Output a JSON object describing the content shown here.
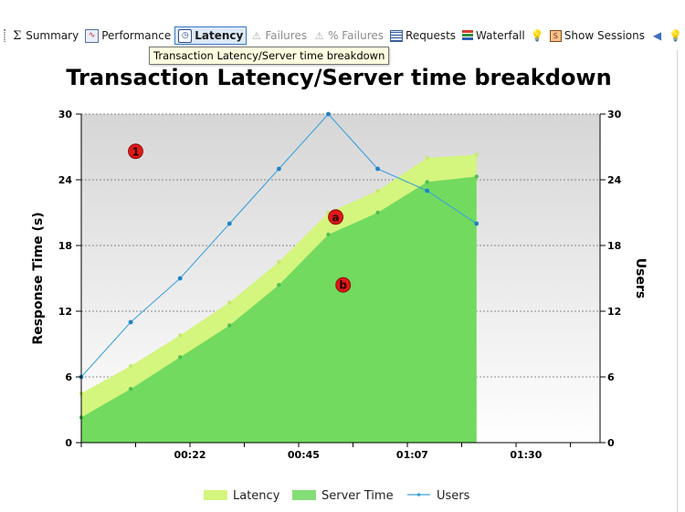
{
  "toolbar": {
    "items": [
      {
        "label": "Summary",
        "icon": "sigma-icon",
        "state": "normal"
      },
      {
        "label": "Performance",
        "icon": "performance-chart-icon",
        "state": "normal"
      },
      {
        "label": "Latency",
        "icon": "latency-clock-icon",
        "state": "active"
      },
      {
        "label": "Failures",
        "icon": "warning-triangle-icon",
        "state": "disabled"
      },
      {
        "label": "% Failures",
        "icon": "percent-failures-icon",
        "state": "disabled"
      },
      {
        "label": "Requests",
        "icon": "requests-table-icon",
        "state": "normal"
      },
      {
        "label": "Waterfall",
        "icon": "waterfall-icon",
        "state": "normal"
      },
      {
        "label": "",
        "icon": "lightbulb-icon",
        "state": "normal"
      },
      {
        "label": "Show Sessions",
        "icon": "sessions-icon",
        "state": "normal"
      },
      {
        "label": "",
        "icon": "back-arrow-icon",
        "state": "normal"
      },
      {
        "label": "",
        "icon": "lightbulb-icon",
        "state": "normal"
      }
    ]
  },
  "tooltip": {
    "text": "Transaction Latency/Server time breakdown"
  },
  "colors": {
    "latency": "#d4f57e",
    "server_time": "#6dd85e",
    "users": "#3ea2dc",
    "plot_bg_top": "#d6d6d6",
    "marker_red": "#e01818"
  },
  "chart_data": {
    "type": "area",
    "title": "Transaction Latency/Server time breakdown",
    "xlabel": "",
    "ylabel": "Response Time (s)",
    "y2label": "Users",
    "x_tick_labels": [
      "00:22",
      "00:45",
      "01:07",
      "01:30"
    ],
    "x_tick_values": [
      22,
      45,
      67,
      90
    ],
    "xlim": [
      0,
      105
    ],
    "ylim": [
      0,
      30
    ],
    "y2lim": [
      0,
      30
    ],
    "y_ticks": [
      0,
      6,
      12,
      18,
      24,
      30
    ],
    "y2_ticks": [
      0,
      6,
      12,
      18,
      24,
      30
    ],
    "grid": true,
    "legend": "bottom",
    "x": [
      0,
      10,
      20,
      30,
      40,
      50,
      60,
      70,
      80
    ],
    "series": [
      {
        "name": "Latency",
        "type": "area",
        "axis": "left",
        "values": [
          4.5,
          7,
          9.8,
          12.8,
          16.5,
          21,
          23,
          26,
          26.3
        ]
      },
      {
        "name": "Server Time",
        "type": "area",
        "axis": "left",
        "values": [
          2.3,
          4.9,
          7.8,
          10.7,
          14.4,
          19,
          21,
          23.8,
          24.3
        ]
      },
      {
        "name": "Users",
        "type": "line",
        "axis": "right",
        "values": [
          6,
          11,
          15,
          20,
          25,
          30,
          25,
          23,
          20
        ]
      }
    ],
    "annotations": [
      {
        "label": "1",
        "x": 11,
        "y": 26.6
      },
      {
        "label": "a",
        "x": 51.5,
        "y": 20.6
      },
      {
        "label": "b",
        "x": 53,
        "y": 14.4
      }
    ]
  }
}
